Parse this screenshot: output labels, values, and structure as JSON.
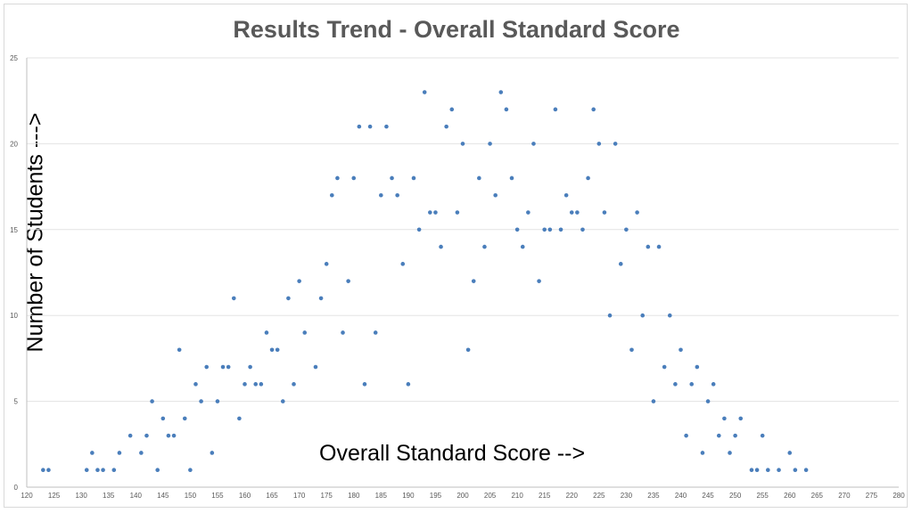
{
  "chart_data": {
    "type": "scatter",
    "title": "Results Trend - Overall Standard Score",
    "xlabel": "Overall Standard Score -->",
    "ylabel": "Number of Students --->",
    "xlim": [
      120,
      280
    ],
    "ylim": [
      0,
      25
    ],
    "x_ticks": [
      120,
      125,
      130,
      135,
      140,
      145,
      150,
      155,
      160,
      165,
      170,
      175,
      180,
      185,
      190,
      195,
      200,
      205,
      210,
      215,
      220,
      225,
      230,
      235,
      240,
      245,
      250,
      255,
      260,
      265,
      270,
      275,
      280
    ],
    "y_ticks": [
      0,
      5,
      10,
      15,
      20,
      25
    ],
    "grid": true,
    "legend": "none",
    "marker_color": "#4a7ebb",
    "series": [
      {
        "points": [
          [
            123,
            1
          ],
          [
            124,
            1
          ],
          [
            131,
            1
          ],
          [
            132,
            2
          ],
          [
            133,
            1
          ],
          [
            134,
            1
          ],
          [
            136,
            1
          ],
          [
            137,
            2
          ],
          [
            139,
            3
          ],
          [
            141,
            2
          ],
          [
            142,
            3
          ],
          [
            143,
            5
          ],
          [
            144,
            1
          ],
          [
            145,
            4
          ],
          [
            146,
            3
          ],
          [
            147,
            3
          ],
          [
            148,
            8
          ],
          [
            149,
            4
          ],
          [
            150,
            1
          ],
          [
            151,
            6
          ],
          [
            152,
            5
          ],
          [
            153,
            7
          ],
          [
            154,
            2
          ],
          [
            155,
            5
          ],
          [
            156,
            7
          ],
          [
            157,
            7
          ],
          [
            158,
            11
          ],
          [
            159,
            4
          ],
          [
            160,
            6
          ],
          [
            161,
            7
          ],
          [
            162,
            6
          ],
          [
            163,
            6
          ],
          [
            164,
            9
          ],
          [
            165,
            8
          ],
          [
            166,
            8
          ],
          [
            167,
            5
          ],
          [
            168,
            11
          ],
          [
            169,
            6
          ],
          [
            170,
            12
          ],
          [
            171,
            9
          ],
          [
            173,
            7
          ],
          [
            174,
            11
          ],
          [
            175,
            13
          ],
          [
            176,
            17
          ],
          [
            177,
            18
          ],
          [
            178,
            9
          ],
          [
            179,
            12
          ],
          [
            180,
            18
          ],
          [
            181,
            21
          ],
          [
            182,
            6
          ],
          [
            183,
            21
          ],
          [
            184,
            9
          ],
          [
            185,
            17
          ],
          [
            186,
            21
          ],
          [
            187,
            18
          ],
          [
            188,
            17
          ],
          [
            189,
            13
          ],
          [
            190,
            6
          ],
          [
            191,
            18
          ],
          [
            192,
            15
          ],
          [
            193,
            23
          ],
          [
            194,
            16
          ],
          [
            195,
            16
          ],
          [
            196,
            14
          ],
          [
            197,
            21
          ],
          [
            198,
            22
          ],
          [
            199,
            16
          ],
          [
            200,
            20
          ],
          [
            201,
            8
          ],
          [
            202,
            12
          ],
          [
            203,
            18
          ],
          [
            204,
            14
          ],
          [
            205,
            20
          ],
          [
            206,
            17
          ],
          [
            207,
            23
          ],
          [
            208,
            22
          ],
          [
            209,
            18
          ],
          [
            210,
            15
          ],
          [
            211,
            14
          ],
          [
            212,
            16
          ],
          [
            213,
            20
          ],
          [
            214,
            12
          ],
          [
            215,
            15
          ],
          [
            216,
            15
          ],
          [
            217,
            22
          ],
          [
            218,
            15
          ],
          [
            219,
            17
          ],
          [
            220,
            16
          ],
          [
            221,
            16
          ],
          [
            222,
            15
          ],
          [
            223,
            18
          ],
          [
            224,
            22
          ],
          [
            225,
            20
          ],
          [
            226,
            16
          ],
          [
            227,
            10
          ],
          [
            228,
            20
          ],
          [
            229,
            13
          ],
          [
            230,
            15
          ],
          [
            231,
            8
          ],
          [
            232,
            16
          ],
          [
            233,
            10
          ],
          [
            234,
            14
          ],
          [
            235,
            5
          ],
          [
            236,
            14
          ],
          [
            237,
            7
          ],
          [
            238,
            10
          ],
          [
            239,
            6
          ],
          [
            240,
            8
          ],
          [
            241,
            3
          ],
          [
            242,
            6
          ],
          [
            243,
            7
          ],
          [
            244,
            2
          ],
          [
            245,
            5
          ],
          [
            246,
            6
          ],
          [
            247,
            3
          ],
          [
            248,
            4
          ],
          [
            249,
            2
          ],
          [
            250,
            3
          ],
          [
            251,
            4
          ],
          [
            253,
            1
          ],
          [
            254,
            1
          ],
          [
            255,
            3
          ],
          [
            256,
            1
          ],
          [
            258,
            1
          ],
          [
            260,
            2
          ],
          [
            261,
            1
          ],
          [
            263,
            1
          ]
        ]
      }
    ]
  }
}
